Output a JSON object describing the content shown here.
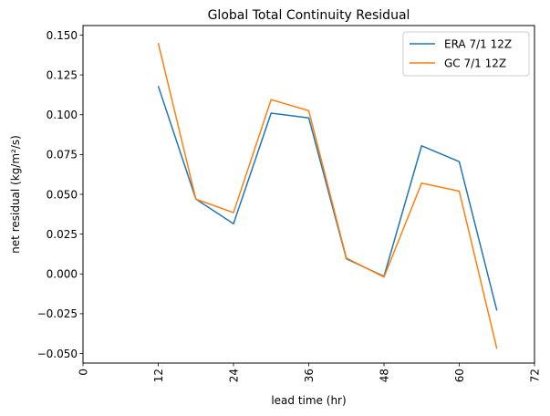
{
  "chart_data": {
    "type": "line",
    "title": "Global Total Continuity Residual",
    "xlabel": "lead time (hr)",
    "ylabel": "net residual (kg/m²/s)",
    "xlim": [
      0,
      72
    ],
    "ylim": [
      -0.056,
      0.156
    ],
    "xticks": [
      0,
      12,
      24,
      36,
      48,
      60,
      72
    ],
    "xtick_labels": [
      "0",
      "12",
      "24",
      "36",
      "48",
      "60",
      "72"
    ],
    "yticks": [
      -0.05,
      -0.025,
      0.0,
      0.025,
      0.05,
      0.075,
      0.1,
      0.125,
      0.15
    ],
    "ytick_labels": [
      "−0.050",
      "−0.025",
      "0.000",
      "0.025",
      "0.050",
      "0.075",
      "0.100",
      "0.125",
      "0.150"
    ],
    "grid": false,
    "legend_position": "top-right",
    "x": [
      12,
      18,
      24,
      30,
      36,
      42,
      48,
      54,
      60,
      66
    ],
    "series": [
      {
        "name": "ERA 7/1 12Z",
        "color": "#1f77b4",
        "values": [
          0.118,
          0.047,
          0.0315,
          0.101,
          0.098,
          0.0095,
          -0.0015,
          0.0805,
          0.0705,
          -0.023
        ]
      },
      {
        "name": "GC 7/1 12Z",
        "color": "#ff7f0e",
        "values": [
          0.145,
          0.047,
          0.0385,
          0.1095,
          0.1025,
          0.01,
          -0.002,
          0.057,
          0.052,
          -0.047
        ]
      }
    ]
  }
}
